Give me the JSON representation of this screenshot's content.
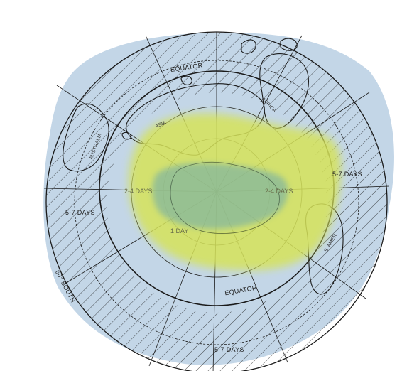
{
  "map": {
    "labels": {
      "equator_top": "EQUATOR",
      "equator_bottom": "EQUATOR",
      "south_60": "60° SOUTH",
      "zone_left_5_7": "5-7 DAYS",
      "zone_right_5_7": "5-7 DAYS",
      "zone_bottom_5_7": "5-7 DAYS",
      "zone_left_2_4": "2-4 DAYS",
      "zone_right_2_4": "2-4 DAYS",
      "zone_1_day": "1 DAY"
    },
    "continents": {
      "australia": "AUSTRALIA",
      "asia": "ASIA",
      "africa": "AFRICA",
      "south_america": "S. AMER."
    },
    "colors": {
      "ocean_wash": "#b9cfe3",
      "yellow_zone": "#d6e35a",
      "green_zone": "#7fb4a0",
      "line": "#1a1a1a"
    }
  }
}
